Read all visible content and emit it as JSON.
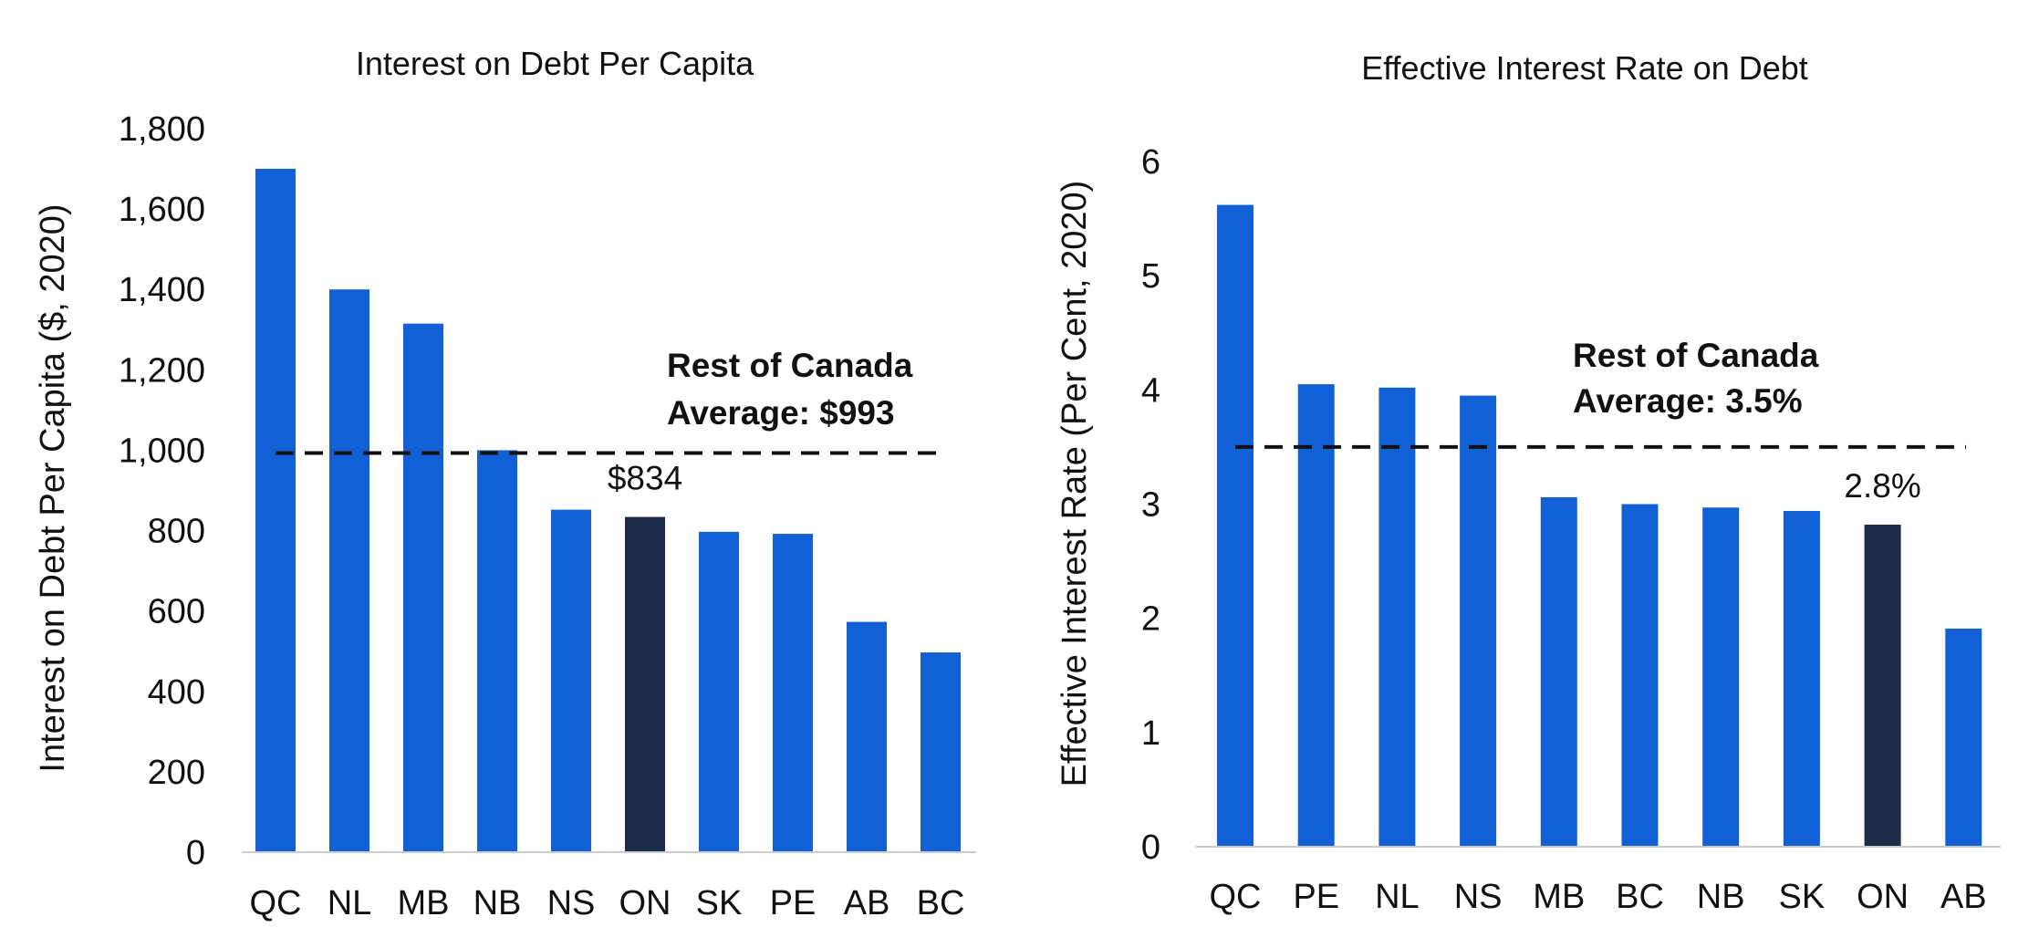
{
  "colors": {
    "bar": "#1260D6",
    "highlight": "#1C2B4A",
    "average_line": "#111111",
    "axis": "#CCCCCC"
  },
  "chart_data": [
    {
      "type": "bar",
      "title": "Interest on Debt Per Capita",
      "xlabel": "",
      "ylabel": "Interest on Debt Per Capita ($, 2020)",
      "ylim": [
        0,
        1800
      ],
      "yticks": [
        0,
        200,
        400,
        600,
        800,
        1000,
        1200,
        1400,
        1600,
        1800
      ],
      "ytick_labels": [
        "0",
        "200",
        "400",
        "600",
        "800",
        "1,000",
        "1,200",
        "1,400",
        "1,600",
        "1,800"
      ],
      "grid": false,
      "categories": [
        "QC",
        "NL",
        "MB",
        "NB",
        "NS",
        "ON",
        "SK",
        "PE",
        "AB",
        "BC"
      ],
      "values": [
        1700,
        1400,
        1315,
        1000,
        852,
        834,
        797,
        792,
        573,
        497
      ],
      "highlight_category": "ON",
      "highlight_label": "$834",
      "average": {
        "value": 993,
        "label_line1": "Rest of Canada",
        "label_line2": "Average: $993"
      }
    },
    {
      "type": "bar",
      "title": "Effective Interest Rate on Debt",
      "xlabel": "",
      "ylabel": "Effective Interest Rate (Per Cent, 2020)",
      "ylim": [
        0,
        6
      ],
      "yticks": [
        0,
        1,
        2,
        3,
        4,
        5,
        6
      ],
      "ytick_labels": [
        "0",
        "1",
        "2",
        "3",
        "4",
        "5",
        "6"
      ],
      "grid": false,
      "categories": [
        "QC",
        "PE",
        "NL",
        "NS",
        "MB",
        "BC",
        "NB",
        "SK",
        "ON",
        "AB"
      ],
      "values": [
        5.62,
        4.05,
        4.02,
        3.95,
        3.06,
        3.0,
        2.97,
        2.94,
        2.82,
        1.91
      ],
      "highlight_category": "ON",
      "highlight_label": "2.8%",
      "average": {
        "value": 3.5,
        "label_line1": "Rest of Canada",
        "label_line2": "Average: 3.5%"
      }
    }
  ]
}
